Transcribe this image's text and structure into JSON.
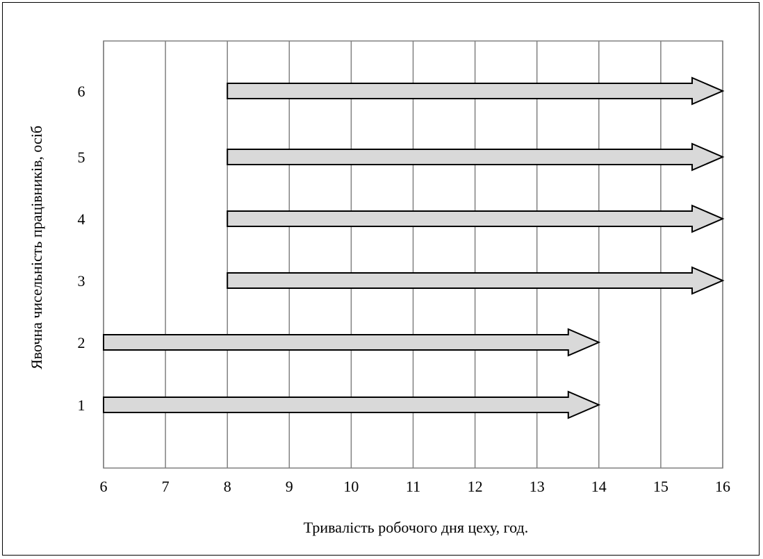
{
  "chart_data": {
    "type": "bar",
    "orientation": "horizontal-arrows",
    "xlabel": "Тривалість робочого дня цеху, год.",
    "ylabel": "Явочна чисельність працівників, осіб",
    "xlim": [
      6,
      16
    ],
    "x_ticks": [
      "6",
      "7",
      "8",
      "9",
      "10",
      "11",
      "12",
      "13",
      "14",
      "15",
      "16"
    ],
    "grid": "vertical",
    "categories": [
      "1",
      "2",
      "3",
      "4",
      "5",
      "6"
    ],
    "series": [
      {
        "values": [
          {
            "worker": "1",
            "start": 6,
            "end": 14
          },
          {
            "worker": "2",
            "start": 6,
            "end": 14
          },
          {
            "worker": "3",
            "start": 8,
            "end": 16
          },
          {
            "worker": "4",
            "start": 8,
            "end": 16
          },
          {
            "worker": "5",
            "start": 8,
            "end": 16
          },
          {
            "worker": "6",
            "start": 8,
            "end": 16
          }
        ]
      }
    ],
    "colors": {
      "arrow_fill": "#d9d9d9",
      "grid": "#808080",
      "stroke": "#000000"
    }
  }
}
